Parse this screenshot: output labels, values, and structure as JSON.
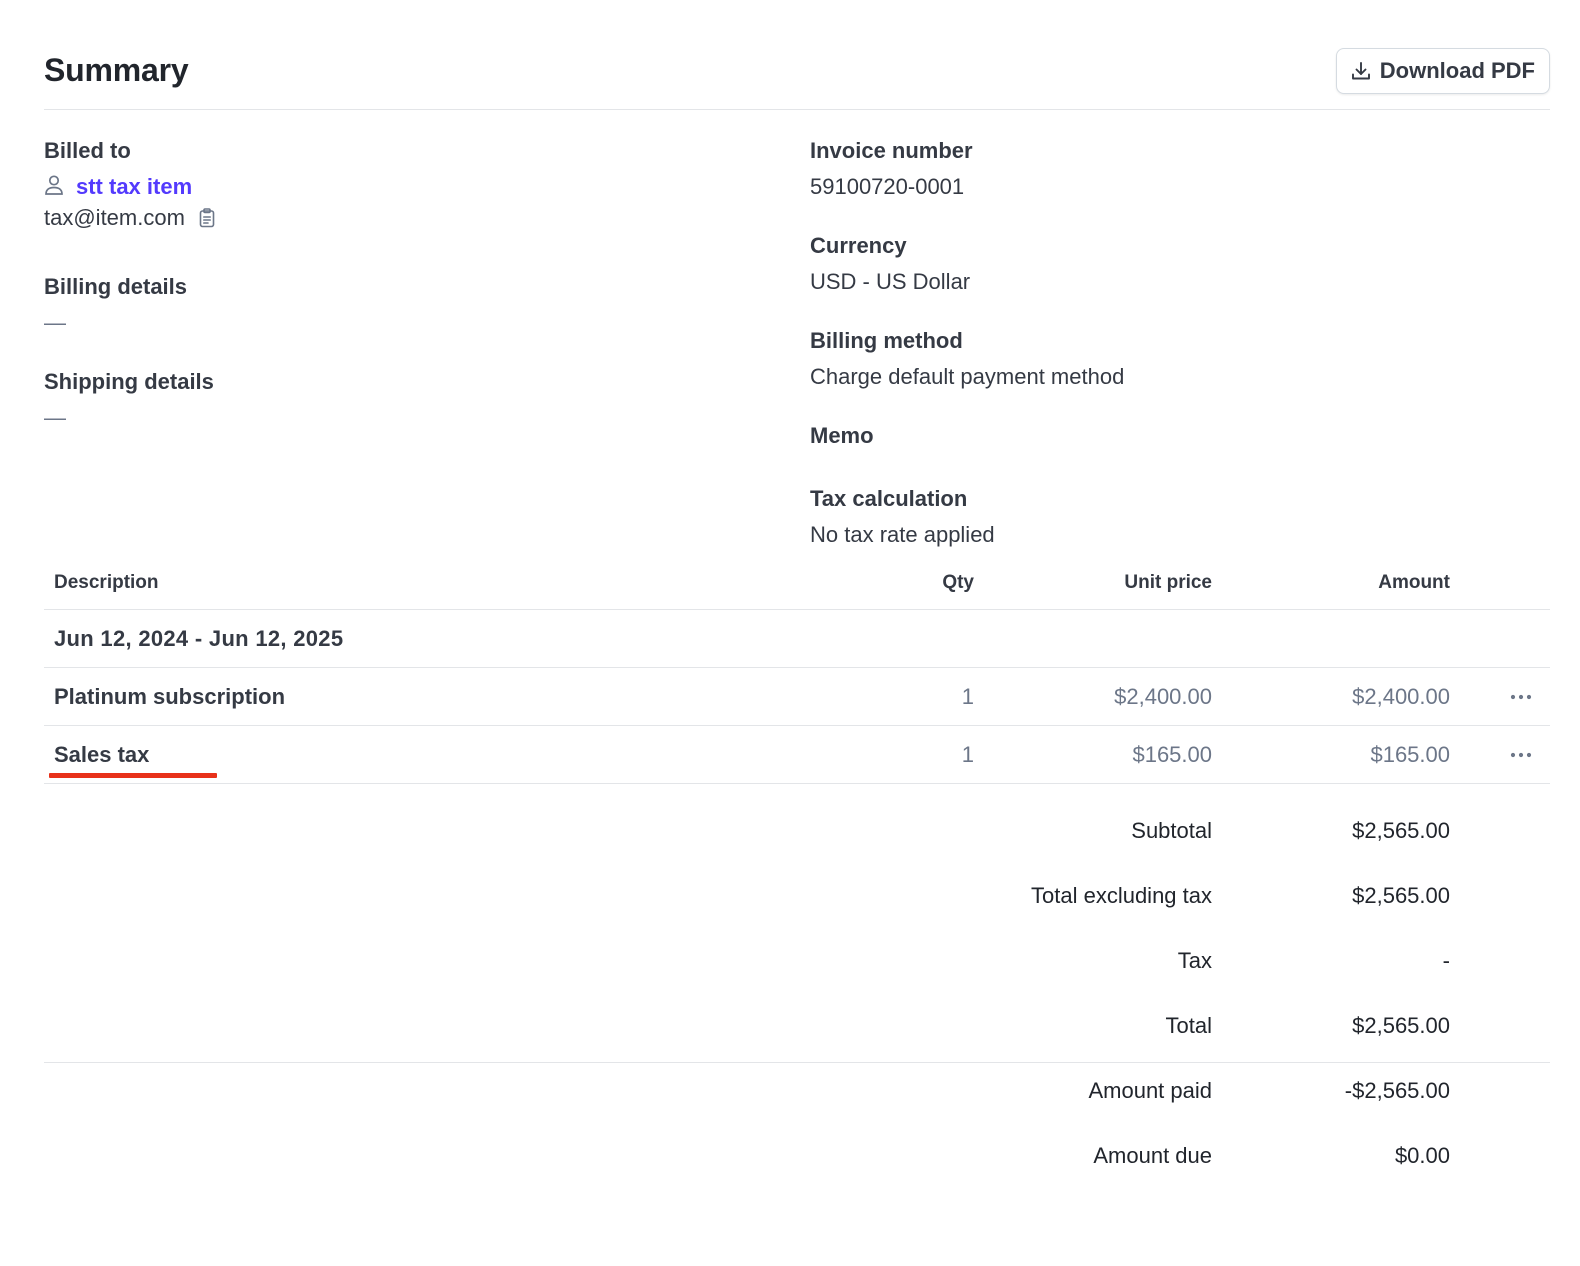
{
  "header": {
    "title": "Summary",
    "download_label": "Download PDF",
    "download_icon": "download-icon"
  },
  "billed_to": {
    "label": "Billed to",
    "customer_icon": "person-icon",
    "customer_name": "stt tax item",
    "email": "tax@item.com",
    "copy_icon": "clipboard-icon"
  },
  "billing_details": {
    "label": "Billing details",
    "value": "—"
  },
  "shipping_details": {
    "label": "Shipping details",
    "value": "—"
  },
  "invoice_number": {
    "label": "Invoice number",
    "value": "59100720-0001"
  },
  "currency": {
    "label": "Currency",
    "value": "USD - US Dollar"
  },
  "billing_method": {
    "label": "Billing method",
    "value": "Charge default payment method"
  },
  "memo": {
    "label": "Memo",
    "value": ""
  },
  "tax_calculation": {
    "label": "Tax calculation",
    "value": "No tax rate applied"
  },
  "table": {
    "columns": {
      "description": "Description",
      "qty": "Qty",
      "unit_price": "Unit price",
      "amount": "Amount"
    },
    "period": "Jun 12, 2024 - Jun 12, 2025",
    "rows": [
      {
        "description": "Platinum subscription",
        "qty": "1",
        "unit_price": "$2,400.00",
        "amount": "$2,400.00",
        "menu_icon": "more-horizontal-icon"
      },
      {
        "description": "Sales tax",
        "qty": "1",
        "unit_price": "$165.00",
        "amount": "$165.00",
        "menu_icon": "more-horizontal-icon"
      }
    ]
  },
  "totals": {
    "subtotal": {
      "label": "Subtotal",
      "value": "$2,565.00"
    },
    "total_excluding_tax": {
      "label": "Total excluding tax",
      "value": "$2,565.00"
    },
    "tax": {
      "label": "Tax",
      "value": "-"
    },
    "total": {
      "label": "Total",
      "value": "$2,565.00"
    },
    "amount_paid": {
      "label": "Amount paid",
      "value": "-$2,565.00"
    },
    "amount_due": {
      "label": "Amount due",
      "value": "$0.00"
    }
  },
  "colors": {
    "link": "#533afd",
    "text": "#353a44",
    "muted": "#6c7688",
    "divider": "#e3e5e8",
    "annotation": "#e8311a"
  }
}
